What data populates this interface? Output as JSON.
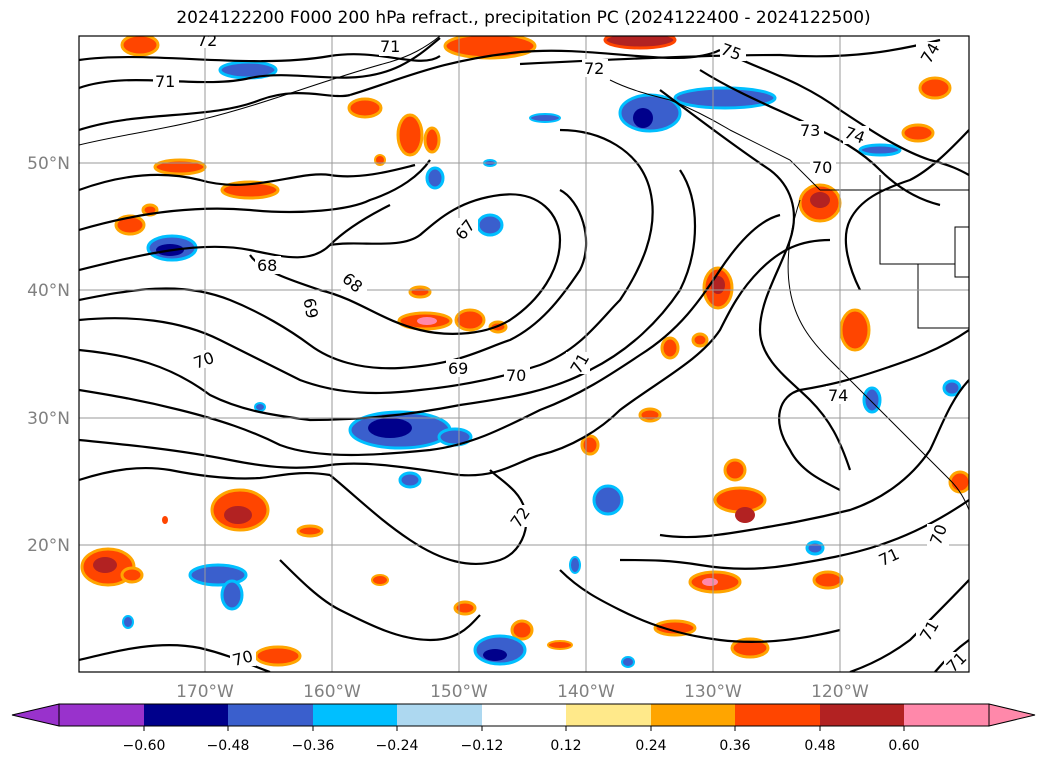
{
  "title": "2024122200 F000 200 hPa refract., precipitation PC (2024122400 - 2024122500)",
  "latitude_labels": [
    "50°N",
    "40°N",
    "30°N",
    "20°N"
  ],
  "longitude_labels": [
    "170°W",
    "160°W",
    "150°W",
    "140°W",
    "130°W",
    "120°W"
  ],
  "contour_labels": [
    "72",
    "71",
    "71",
    "72",
    "75",
    "74",
    "73",
    "74",
    "70",
    "68",
    "68",
    "69",
    "67",
    "70",
    "69",
    "70",
    "71",
    "74",
    "72",
    "71",
    "70",
    "71",
    "70",
    "71"
  ],
  "colorbar": {
    "ticks": [
      "−0.60",
      "−0.48",
      "−0.36",
      "−0.24",
      "−0.12",
      "0.12",
      "0.24",
      "0.36",
      "0.48",
      "0.60"
    ],
    "colors": [
      "#9932cc",
      "#00008b",
      "#3a5fcd",
      "#00bfff",
      "#add8f0",
      "#ffffff",
      "#ffe98a",
      "#ffa500",
      "#ff4500",
      "#b22222",
      "#ff88aa"
    ]
  }
}
